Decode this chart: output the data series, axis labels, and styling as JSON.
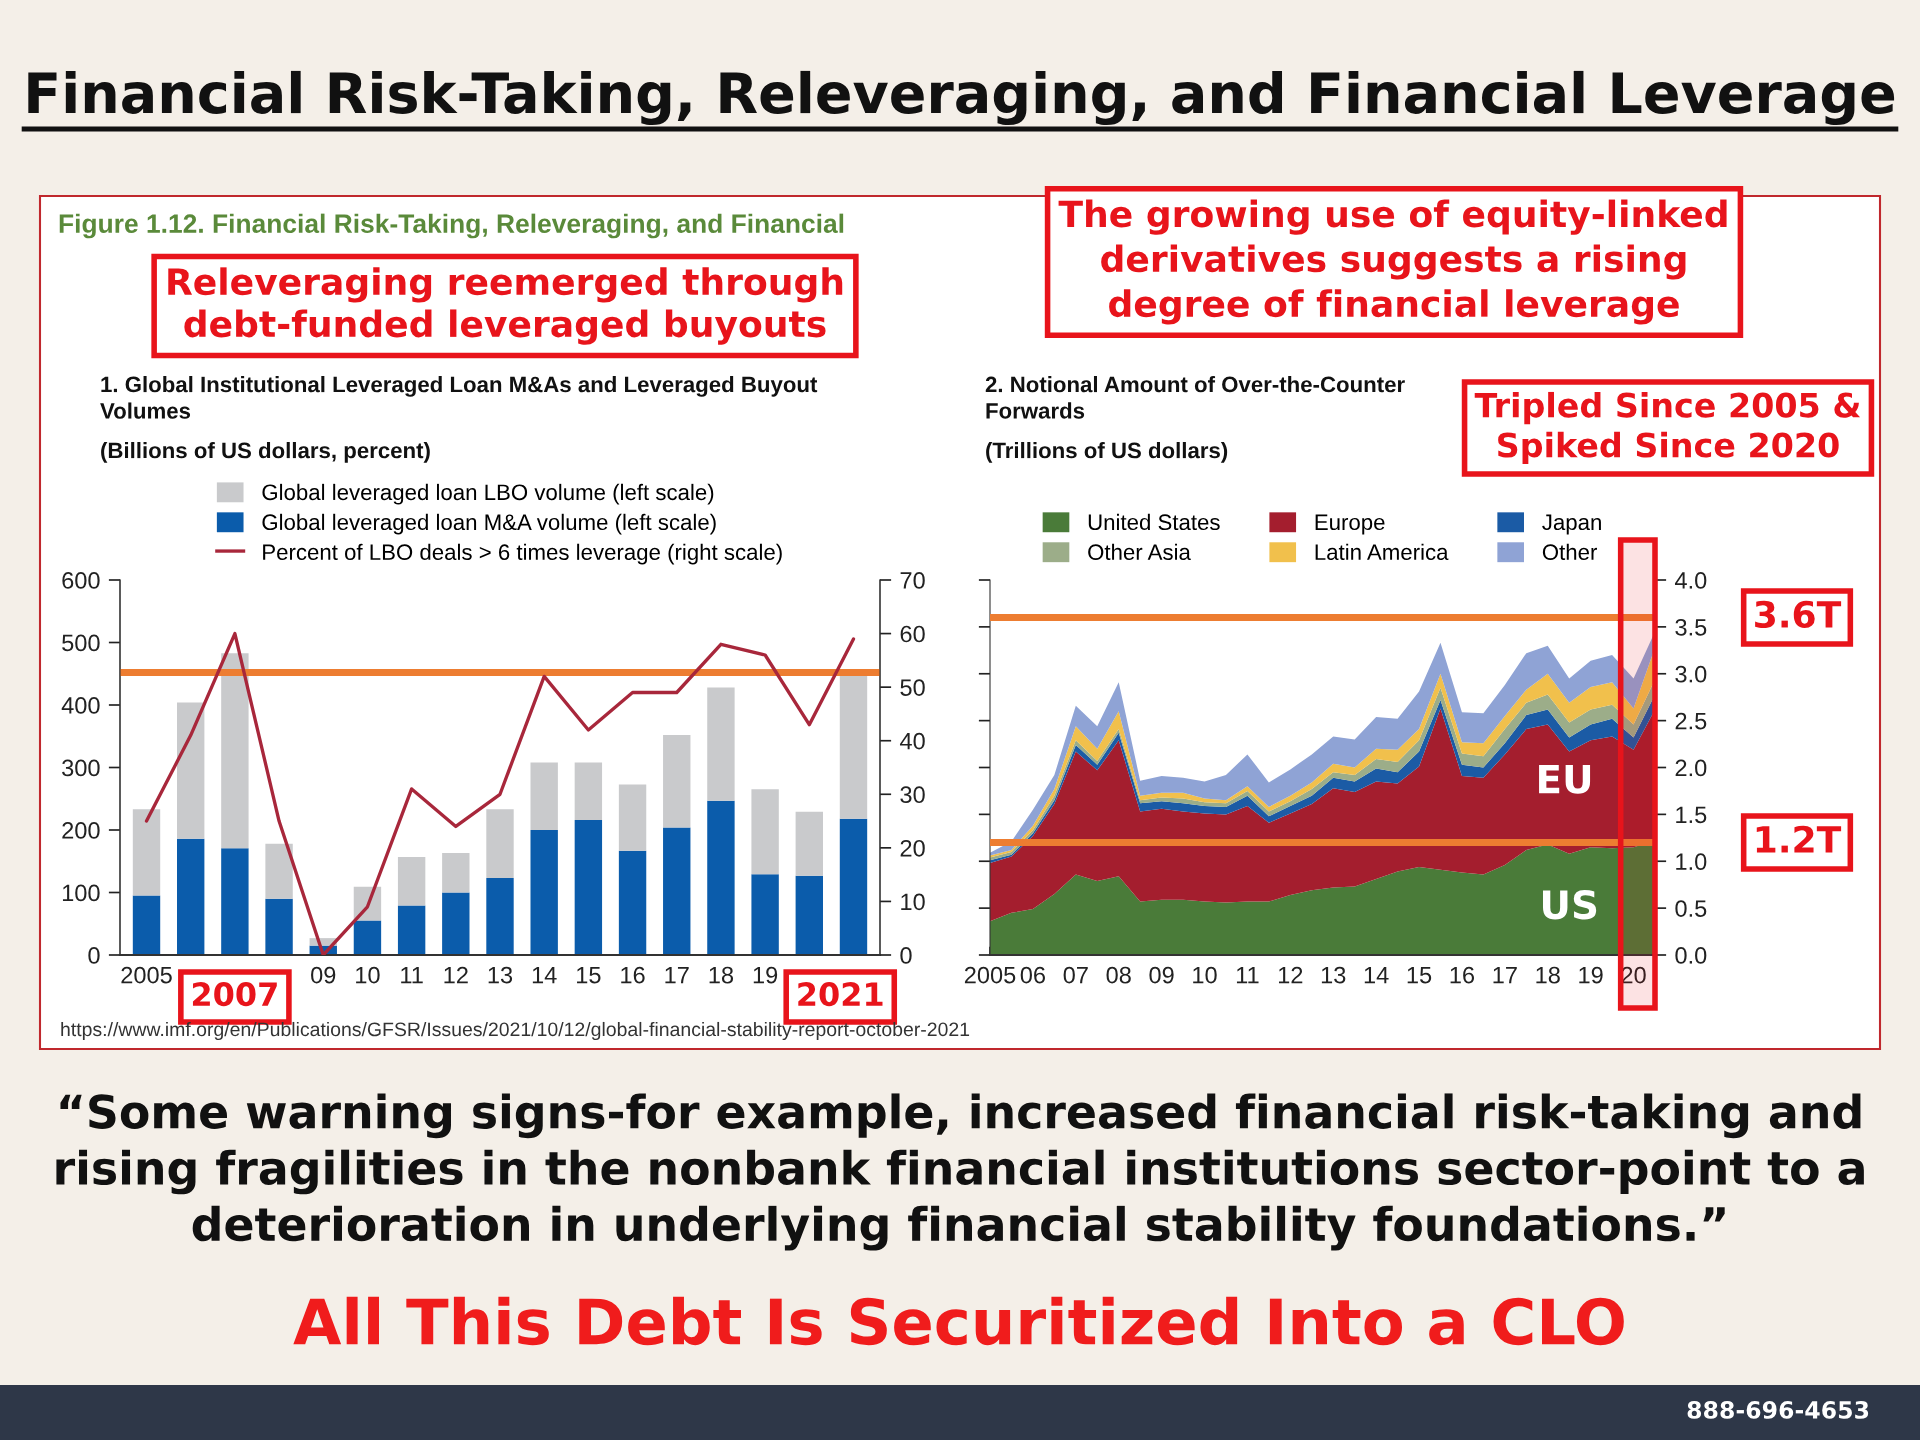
{
  "chart_data": [
    {
      "type": "other",
      "title": "Financial Risk-Taking, Releveraging, and Financial Leverage",
      "annotations": [
        "Figure 1.12. Financial Risk-Taking, Releveraging, and Financial"
      ]
    },
    {
      "type": "bar",
      "stacked": true,
      "title": "1. Global Institutional Leveraged Loan M&As and Leveraged Buyout\nVolumes",
      "subtitle": "(Billions of US dollars, percent)",
      "categories": [
        "2005",
        null,
        null,
        null,
        "09",
        "10",
        "11",
        "12",
        "13",
        "14",
        "15",
        "16",
        "17",
        "18",
        "19",
        null,
        null
      ],
      "series": [
        {
          "name": "Global leveraged loan M&A volume (left scale)",
          "color": "#0b5cab",
          "values": [
            95,
            186,
            171,
            90,
            15,
            55,
            79,
            100,
            123,
            200,
            216,
            167,
            204,
            247,
            129,
            127,
            218
          ]
        },
        {
          "name": "Global leveraged loan LBO volume (left scale)",
          "color": "#c9cacc",
          "values": [
            138,
            218,
            312,
            88,
            12,
            54,
            78,
            63,
            110,
            108,
            92,
            106,
            148,
            181,
            136,
            102,
            232
          ]
        },
        {
          "name": "Percent of LBO deals > 6 times leverage (right scale)",
          "type": "line",
          "axis": "y2",
          "color": "#a8273b",
          "values": [
            25,
            41,
            60,
            25,
            0,
            9,
            31,
            24,
            30,
            52,
            42,
            49,
            49,
            58,
            56,
            43,
            59
          ]
        }
      ],
      "ylim": [
        0,
        600
      ],
      "yticks": [
        0,
        100,
        200,
        300,
        400,
        500,
        600
      ],
      "y2lim": [
        0,
        70
      ],
      "y2ticks": [
        0,
        10,
        20,
        30,
        40,
        50,
        60,
        70
      ],
      "legend": "top",
      "ref_lines": [
        {
          "axis": "y",
          "value": 452,
          "color": "#ed7d31"
        }
      ],
      "annotations": [
        "Releveraging reemerged through\ndebt-funded leveraged buyouts",
        "2007",
        "2021",
        "https://www.imf.org/en/Publications/GFSR/Issues/2021/10/12/global-financial-stability-report-october-2021"
      ]
    },
    {
      "type": "area",
      "stacked": true,
      "title": "2. Notional Amount of Over-the-Counter\nForwards",
      "subtitle": "(Trillions of US dollars)",
      "x": [
        2005,
        2005.5,
        2006,
        2006.5,
        2007,
        2007.5,
        2008,
        2008.5,
        2009,
        2009.5,
        2010,
        2010.5,
        2011,
        2011.5,
        2012,
        2012.5,
        2013,
        2013.5,
        2014,
        2014.5,
        2015,
        2015.5,
        2016,
        2016.5,
        2017,
        2017.5,
        2018,
        2018.5,
        2019,
        2019.5,
        2020,
        2020.5
      ],
      "series": [
        {
          "name": "United States",
          "color": "#4a7b39",
          "values": [
            0.36,
            0.45,
            0.49,
            0.65,
            0.86,
            0.79,
            0.84,
            0.57,
            0.59,
            0.59,
            0.57,
            0.56,
            0.57,
            0.57,
            0.64,
            0.69,
            0.72,
            0.73,
            0.81,
            0.89,
            0.94,
            0.91,
            0.88,
            0.86,
            0.96,
            1.12,
            1.18,
            1.08,
            1.15,
            1.14,
            1.15,
            1.22
          ]
        },
        {
          "name": "Europe",
          "color": "#a41e2e",
          "values": [
            0.62,
            0.6,
            0.78,
            0.96,
            1.31,
            1.18,
            1.45,
            0.96,
            0.97,
            0.94,
            0.94,
            0.94,
            1.02,
            0.84,
            0.87,
            0.92,
            1.06,
            1.01,
            1.04,
            0.94,
            1.07,
            1.72,
            1.03,
            1.03,
            1.18,
            1.29,
            1.28,
            1.09,
            1.14,
            1.19,
            1.04,
            1.4
          ]
        },
        {
          "name": "Japan",
          "color": "#1b5ba5",
          "values": [
            0.03,
            0.02,
            0.03,
            0.04,
            0.07,
            0.06,
            0.08,
            0.09,
            0.08,
            0.09,
            0.08,
            0.08,
            0.11,
            0.07,
            0.08,
            0.09,
            0.11,
            0.11,
            0.14,
            0.12,
            0.16,
            0.09,
            0.12,
            0.11,
            0.12,
            0.15,
            0.16,
            0.15,
            0.17,
            0.19,
            0.13,
            0.16
          ]
        },
        {
          "name": "Other Asia",
          "color": "#9cad89",
          "values": [
            0.03,
            0.03,
            0.03,
            0.05,
            0.05,
            0.04,
            0.04,
            0.03,
            0.04,
            0.05,
            0.04,
            0.04,
            0.05,
            0.05,
            0.05,
            0.07,
            0.06,
            0.07,
            0.1,
            0.11,
            0.12,
            0.13,
            0.12,
            0.12,
            0.15,
            0.13,
            0.16,
            0.16,
            0.16,
            0.15,
            0.14,
            0.16
          ]
        },
        {
          "name": "Latin America",
          "color": "#f1c04c",
          "values": [
            0.02,
            0.02,
            0.05,
            0.07,
            0.15,
            0.13,
            0.19,
            0.05,
            0.05,
            0.06,
            0.04,
            0.03,
            0.05,
            0.05,
            0.06,
            0.07,
            0.09,
            0.08,
            0.11,
            0.13,
            0.12,
            0.15,
            0.12,
            0.14,
            0.14,
            0.14,
            0.22,
            0.21,
            0.24,
            0.24,
            0.17,
            0.34
          ]
        },
        {
          "name": "Other",
          "color": "#8fa3d5",
          "values": [
            0.03,
            0.09,
            0.17,
            0.15,
            0.22,
            0.24,
            0.31,
            0.16,
            0.18,
            0.16,
            0.18,
            0.27,
            0.34,
            0.26,
            0.28,
            0.3,
            0.29,
            0.3,
            0.34,
            0.33,
            0.4,
            0.33,
            0.32,
            0.32,
            0.33,
            0.39,
            0.3,
            0.26,
            0.28,
            0.29,
            0.32,
            0.17
          ]
        }
      ],
      "xlim": [
        2005,
        2020.5
      ],
      "xticks": [
        2005,
        {
          "value": 2006,
          "label": "06"
        },
        {
          "value": 2007,
          "label": "07"
        },
        {
          "value": 2008,
          "label": "08"
        },
        {
          "value": 2009,
          "label": "09"
        },
        {
          "value": 2010,
          "label": "10"
        },
        {
          "value": 2011,
          "label": "11"
        },
        {
          "value": 2012,
          "label": "12"
        },
        {
          "value": 2013,
          "label": "13"
        },
        {
          "value": 2014,
          "label": "14"
        },
        {
          "value": 2015,
          "label": "15"
        },
        {
          "value": 2016,
          "label": "16"
        },
        {
          "value": 2017,
          "label": "17"
        },
        {
          "value": 2018,
          "label": "18"
        },
        {
          "value": 2019,
          "label": "19"
        },
        {
          "value": 2020,
          "label": "20"
        }
      ],
      "ylim": [
        0,
        4
      ],
      "yticks": [
        {
          "value": 0,
          "label": "0.0"
        },
        {
          "value": 0.5,
          "label": "0.5"
        },
        {
          "value": 1,
          "label": "1.0"
        },
        {
          "value": 1.5,
          "label": "1.5"
        },
        {
          "value": 2,
          "label": "2.0"
        },
        {
          "value": 2.5,
          "label": "2.5"
        },
        {
          "value": 3,
          "label": "3.0"
        },
        {
          "value": 3.5,
          "label": "3.5"
        },
        {
          "value": 4,
          "label": "4.0"
        }
      ],
      "legend": "top",
      "ref_lines": [
        {
          "axis": "y",
          "value": 3.6,
          "label": "3.6T",
          "color": "#ed7d31"
        },
        {
          "axis": "y",
          "value": 1.2,
          "label": "1.2T",
          "color": "#ed7d31"
        }
      ],
      "bands": [
        {
          "axis": "x",
          "from": 2019.7,
          "to": 2020.5,
          "color": "#e8141b"
        }
      ],
      "annotations": [
        "The growing use of equity-linked\nderivatives suggests a rising\ndegree of financial leverage",
        "Tripled Since 2005 &\nSpiked Since 2020",
        "EU",
        "US"
      ]
    },
    {
      "type": "other",
      "annotations": [
        "“Some warning signs-for example, increased financial risk-taking and\nrising fragilities in the nonbank financial institutions sector-point to a\ndeterioration in underlying financial stability foundations.”",
        "All This Debt Is Securitized Into a CLO",
        "888-696-4653"
      ]
    }
  ]
}
